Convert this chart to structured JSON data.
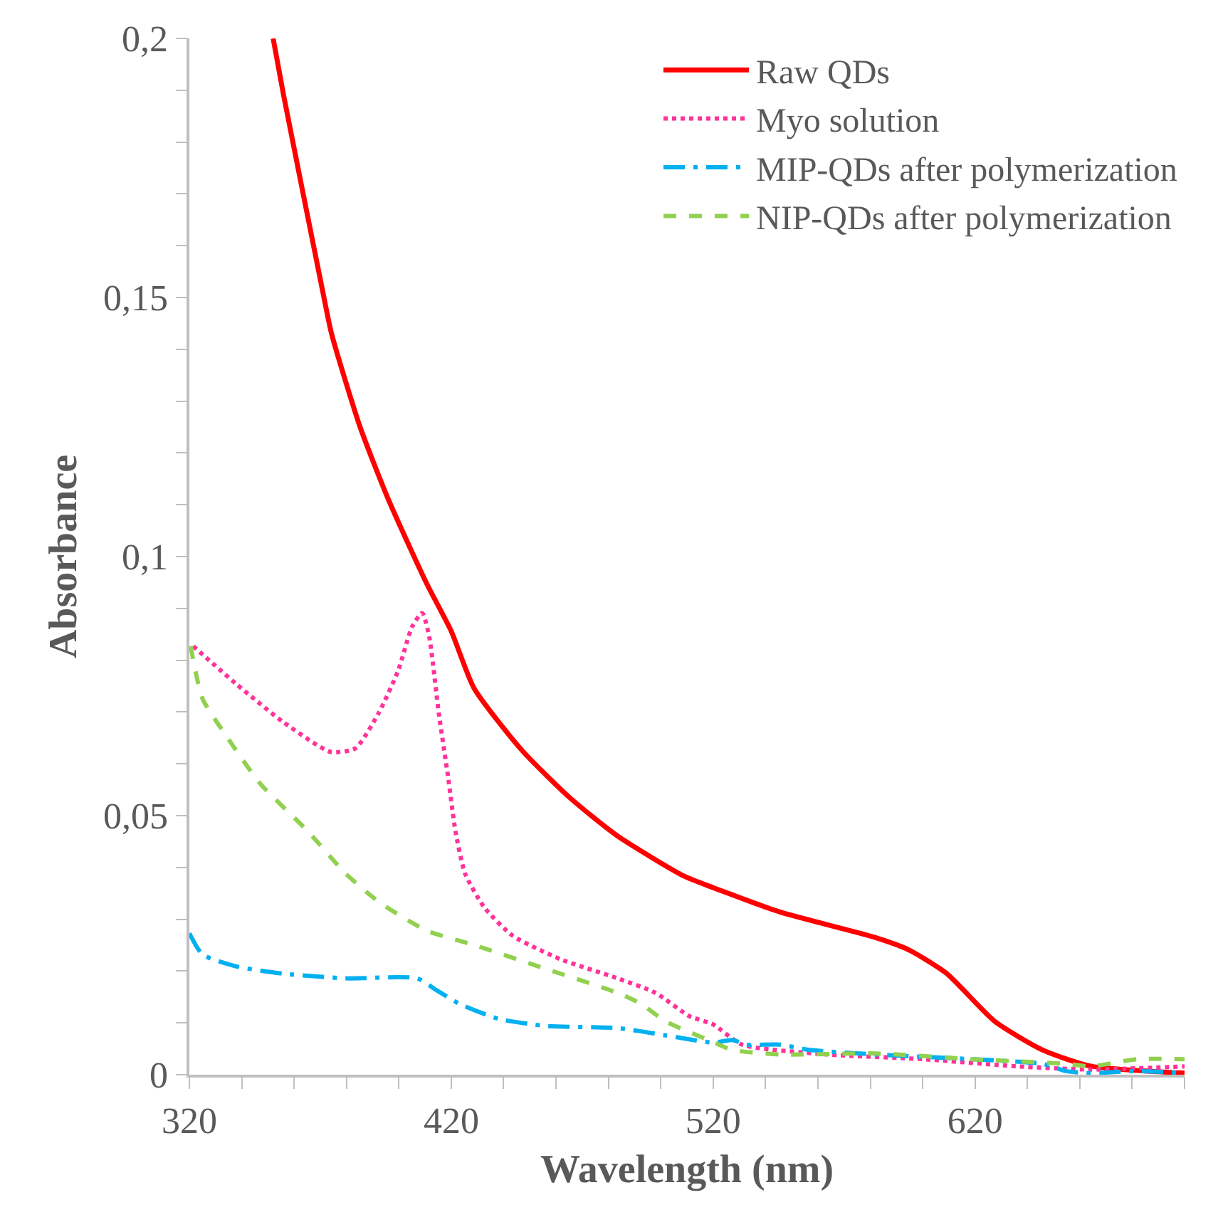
{
  "chart_data": {
    "type": "line",
    "xlabel": "Wavelength (nm)",
    "ylabel": "Absorbance",
    "xlim": [
      320,
      700
    ],
    "ylim": [
      0,
      0.2
    ],
    "xticks": [
      320,
      {
        "value": 340,
        "label": null
      },
      {
        "value": 360,
        "label": null
      },
      {
        "value": 380,
        "label": null
      },
      {
        "value": 400,
        "label": null
      },
      420,
      {
        "value": 440,
        "label": null
      },
      {
        "value": 460,
        "label": null
      },
      {
        "value": 480,
        "label": null
      },
      {
        "value": 500,
        "label": null
      },
      520,
      {
        "value": 540,
        "label": null
      },
      {
        "value": 560,
        "label": null
      },
      {
        "value": 580,
        "label": null
      },
      {
        "value": 600,
        "label": null
      },
      620,
      {
        "value": 640,
        "label": null
      },
      {
        "value": 660,
        "label": null
      },
      {
        "value": 680,
        "label": null
      },
      {
        "value": 700,
        "label": null
      }
    ],
    "yticks": [
      0,
      {
        "value": 0.01,
        "label": null
      },
      {
        "value": 0.02,
        "label": null
      },
      {
        "value": 0.03,
        "label": null
      },
      {
        "value": 0.04,
        "label": null
      },
      {
        "value": 0.05,
        "label": "0,05"
      },
      {
        "value": 0.06,
        "label": null
      },
      {
        "value": 0.07,
        "label": null
      },
      {
        "value": 0.08,
        "label": null
      },
      {
        "value": 0.09,
        "label": null
      },
      {
        "value": 0.1,
        "label": "0,1"
      },
      {
        "value": 0.11,
        "label": null
      },
      {
        "value": 0.12,
        "label": null
      },
      {
        "value": 0.13,
        "label": null
      },
      {
        "value": 0.14,
        "label": null
      },
      {
        "value": 0.15,
        "label": "0,15"
      },
      {
        "value": 0.16,
        "label": null
      },
      {
        "value": 0.17,
        "label": null
      },
      {
        "value": 0.18,
        "label": null
      },
      {
        "value": 0.19,
        "label": null
      },
      {
        "value": 0.2,
        "label": "0,2"
      }
    ],
    "legend": "top right",
    "marker": "none",
    "series": [
      {
        "name": "Raw QDs",
        "color": "#ff0000",
        "line_style": "solid",
        "x": [
          352,
          356,
          370.6,
          374.3,
          385.2,
          396,
          410.7,
          420,
          428.7,
          447,
          465.4,
          483.4,
          509,
          520,
          545.5,
          581.8,
          594.7,
          609,
          627.5,
          645.7,
          663.7,
          700
        ],
        "values": [
          0.2,
          0.189,
          0.152,
          0.143,
          0.125,
          0.111,
          0.0947,
          0.0856,
          0.0746,
          0.0626,
          0.0534,
          0.0461,
          0.0383,
          0.0361,
          0.0314,
          0.0265,
          0.0241,
          0.0196,
          0.0103,
          0.0048,
          0.0017,
          0.0003
        ]
      },
      {
        "name": "Myo solution",
        "color": "#ff3399",
        "line_style": "dotted",
        "x": [
          321.5,
          337.9,
          356,
          374,
          383.4,
          392.4,
          399.8,
          405,
          408.9,
          411.6,
          415.2,
          418.9,
          421.6,
          425.3,
          432.6,
          443.5,
          461.7,
          483.5,
          498,
          510.9,
          520,
          531,
          563.7,
          600,
          636.4,
          663.7,
          700
        ],
        "values": [
          0.0827,
          0.0754,
          0.068,
          0.0623,
          0.063,
          0.0699,
          0.0781,
          0.0864,
          0.0891,
          0.0845,
          0.0699,
          0.0571,
          0.047,
          0.0388,
          0.0323,
          0.0268,
          0.0223,
          0.0186,
          0.0158,
          0.0113,
          0.0097,
          0.0058,
          0.0039,
          0.003,
          0.0016,
          0.001,
          0.0016
        ]
      },
      {
        "name": "MIP-QDs after polymerization",
        "color": "#00b0f0",
        "line_style": "dashdot",
        "x": [
          320,
          325,
          337.9,
          356,
          379.7,
          407,
          414.4,
          423.4,
          438,
          456.2,
          483.5,
          501.8,
          520,
          527.3,
          532.7,
          545.5,
          556.4,
          581.9,
          618.4,
          645.7,
          654.8,
          663.9,
          682,
          700
        ],
        "values": [
          0.0273,
          0.0232,
          0.0209,
          0.0195,
          0.0186,
          0.0186,
          0.0163,
          0.0136,
          0.0108,
          0.0094,
          0.009,
          0.0076,
          0.0062,
          0.0067,
          0.0058,
          0.0058,
          0.0048,
          0.0039,
          0.003,
          0.0021,
          0.0007,
          0.0003,
          0.0007,
          0.0003
        ]
      },
      {
        "name": "NIP-QDs after polymerization",
        "color": "#92d050",
        "line_style": "dashed",
        "x": [
          320.5,
          325,
          334.2,
          347,
          365.2,
          379.7,
          392.5,
          410.7,
          428.9,
          456.2,
          483.5,
          492.7,
          501.8,
          518.2,
          527.3,
          545.5,
          581.9,
          618.4,
          654.8,
          663.9,
          682,
          700
        ],
        "values": [
          0.0827,
          0.0726,
          0.0653,
          0.0562,
          0.047,
          0.0388,
          0.0333,
          0.0278,
          0.025,
          0.0204,
          0.0158,
          0.0136,
          0.0103,
          0.0067,
          0.0048,
          0.0039,
          0.0041,
          0.003,
          0.0021,
          0.0016,
          0.003,
          0.003
        ]
      }
    ]
  }
}
